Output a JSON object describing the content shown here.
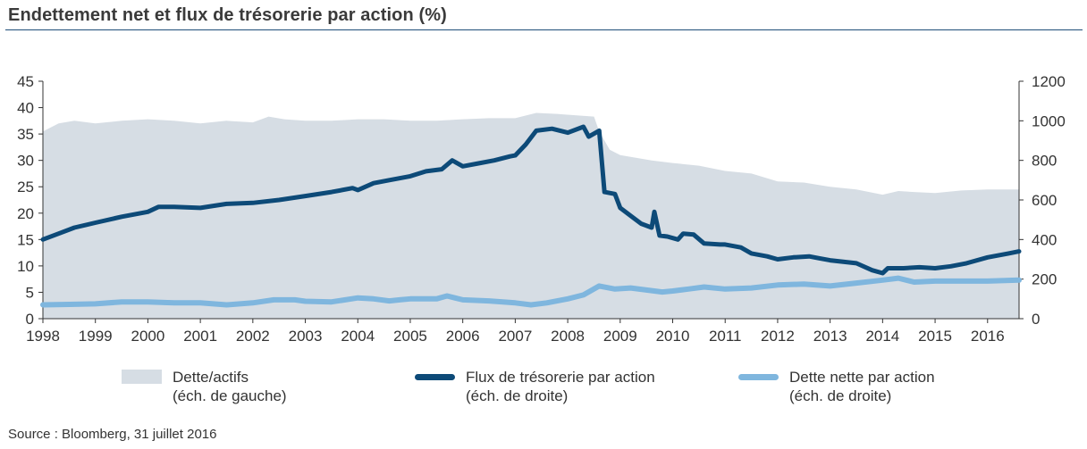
{
  "title": "Endettement net et flux de trésorerie par action (%)",
  "source": "Source : Bloomberg, 31 juillet 2016",
  "legend": {
    "area": {
      "line1": "Dette/actifs",
      "line2": "(éch. de gauche)"
    },
    "dark": {
      "line1": "Flux de trésorerie par action",
      "line2": "(éch. de droite)"
    },
    "light": {
      "line1": "Dette nette par action",
      "line2": "(éch. de droite)"
    }
  },
  "colors": {
    "area": "#d6dde4",
    "dark": "#0d4a78",
    "light": "#7fb6de",
    "axis": "#333333",
    "rule": "#1f4e79"
  },
  "chart_data": {
    "type": "line",
    "x_label_years": [
      "1998",
      "1999",
      "2000",
      "2001",
      "2002",
      "2003",
      "2004",
      "2005",
      "2006",
      "2007",
      "2008",
      "2009",
      "2010",
      "2011",
      "2012",
      "2013",
      "2014",
      "2015",
      "2016"
    ],
    "xlim": [
      1998.0,
      2016.6
    ],
    "y_left": {
      "ticks": [
        "0",
        "5",
        "10",
        "15",
        "20",
        "25",
        "30",
        "35",
        "40",
        "45"
      ],
      "range": [
        0,
        45
      ]
    },
    "y_right": {
      "ticks": [
        "0",
        "200",
        "400",
        "600",
        "800",
        "1000",
        "1200"
      ],
      "range": [
        0,
        1200
      ]
    },
    "series": [
      {
        "name": "Dette/actifs (éch. de gauche)",
        "type": "area",
        "axis": "left",
        "points": [
          [
            1998.0,
            35.5
          ],
          [
            1998.3,
            37
          ],
          [
            1998.6,
            37.5
          ],
          [
            1999.0,
            37
          ],
          [
            1999.5,
            37.5
          ],
          [
            2000.0,
            37.8
          ],
          [
            2000.5,
            37.5
          ],
          [
            2001.0,
            37
          ],
          [
            2001.5,
            37.5
          ],
          [
            2002.0,
            37.2
          ],
          [
            2002.3,
            38.3
          ],
          [
            2002.6,
            37.8
          ],
          [
            2003.0,
            37.5
          ],
          [
            2003.5,
            37.5
          ],
          [
            2004.0,
            37.8
          ],
          [
            2004.5,
            37.8
          ],
          [
            2005.0,
            37.5
          ],
          [
            2005.5,
            37.5
          ],
          [
            2006.0,
            37.8
          ],
          [
            2006.5,
            38
          ],
          [
            2007.0,
            38
          ],
          [
            2007.4,
            39
          ],
          [
            2007.8,
            38.8
          ],
          [
            2008.2,
            38.5
          ],
          [
            2008.5,
            38.3
          ],
          [
            2008.6,
            35.5
          ],
          [
            2008.8,
            32
          ],
          [
            2009.0,
            31
          ],
          [
            2009.3,
            30.5
          ],
          [
            2009.6,
            30
          ],
          [
            2010.0,
            29.5
          ],
          [
            2010.5,
            29
          ],
          [
            2011.0,
            28
          ],
          [
            2011.5,
            27.5
          ],
          [
            2012.0,
            26
          ],
          [
            2012.5,
            25.8
          ],
          [
            2013.0,
            25
          ],
          [
            2013.5,
            24.5
          ],
          [
            2014.0,
            23.5
          ],
          [
            2014.3,
            24.2
          ],
          [
            2014.6,
            24
          ],
          [
            2015.0,
            23.8
          ],
          [
            2015.5,
            24.3
          ],
          [
            2016.0,
            24.5
          ],
          [
            2016.6,
            24.5
          ]
        ]
      },
      {
        "name": "Flux de trésorerie par action (éch. de droite)",
        "type": "line",
        "axis": "right",
        "points": [
          [
            1998.0,
            400
          ],
          [
            1998.3,
            430
          ],
          [
            1998.6,
            460
          ],
          [
            1999.0,
            485
          ],
          [
            1999.5,
            515
          ],
          [
            2000.0,
            540
          ],
          [
            2000.2,
            565
          ],
          [
            2000.5,
            565
          ],
          [
            2001.0,
            560
          ],
          [
            2001.5,
            580
          ],
          [
            2002.0,
            585
          ],
          [
            2002.5,
            600
          ],
          [
            2003.0,
            620
          ],
          [
            2003.5,
            640
          ],
          [
            2003.9,
            660
          ],
          [
            2004.0,
            650
          ],
          [
            2004.3,
            685
          ],
          [
            2004.6,
            700
          ],
          [
            2005.0,
            720
          ],
          [
            2005.3,
            745
          ],
          [
            2005.6,
            755
          ],
          [
            2005.8,
            800
          ],
          [
            2006.0,
            770
          ],
          [
            2006.3,
            785
          ],
          [
            2006.6,
            800
          ],
          [
            2006.9,
            820
          ],
          [
            2007.0,
            825
          ],
          [
            2007.2,
            880
          ],
          [
            2007.4,
            950
          ],
          [
            2007.7,
            960
          ],
          [
            2008.0,
            940
          ],
          [
            2008.3,
            970
          ],
          [
            2008.4,
            920
          ],
          [
            2008.6,
            950
          ],
          [
            2008.7,
            640
          ],
          [
            2008.9,
            630
          ],
          [
            2009.0,
            560
          ],
          [
            2009.2,
            520
          ],
          [
            2009.4,
            480
          ],
          [
            2009.6,
            460
          ],
          [
            2009.65,
            540
          ],
          [
            2009.75,
            420
          ],
          [
            2009.9,
            415
          ],
          [
            2010.1,
            400
          ],
          [
            2010.2,
            430
          ],
          [
            2010.4,
            425
          ],
          [
            2010.6,
            380
          ],
          [
            2010.9,
            375
          ],
          [
            2011.0,
            375
          ],
          [
            2011.3,
            360
          ],
          [
            2011.5,
            330
          ],
          [
            2011.8,
            315
          ],
          [
            2012.0,
            300
          ],
          [
            2012.3,
            310
          ],
          [
            2012.6,
            315
          ],
          [
            2012.8,
            305
          ],
          [
            2013.0,
            295
          ],
          [
            2013.5,
            280
          ],
          [
            2013.8,
            245
          ],
          [
            2014.0,
            230
          ],
          [
            2014.1,
            255
          ],
          [
            2014.4,
            255
          ],
          [
            2014.7,
            260
          ],
          [
            2015.0,
            255
          ],
          [
            2015.3,
            265
          ],
          [
            2015.6,
            280
          ],
          [
            2016.0,
            310
          ],
          [
            2016.4,
            330
          ],
          [
            2016.6,
            340
          ]
        ]
      },
      {
        "name": "Dette nette par action (éch. de droite)",
        "type": "line",
        "axis": "right",
        "points": [
          [
            1998.0,
            70
          ],
          [
            1998.5,
            72
          ],
          [
            1999.0,
            75
          ],
          [
            1999.5,
            85
          ],
          [
            2000.0,
            85
          ],
          [
            2000.5,
            80
          ],
          [
            2001.0,
            80
          ],
          [
            2001.5,
            70
          ],
          [
            2002.0,
            80
          ],
          [
            2002.4,
            95
          ],
          [
            2002.8,
            95
          ],
          [
            2003.0,
            88
          ],
          [
            2003.5,
            85
          ],
          [
            2004.0,
            105
          ],
          [
            2004.3,
            100
          ],
          [
            2004.6,
            90
          ],
          [
            2004.8,
            95
          ],
          [
            2005.0,
            100
          ],
          [
            2005.5,
            100
          ],
          [
            2005.7,
            115
          ],
          [
            2006.0,
            95
          ],
          [
            2006.5,
            90
          ],
          [
            2007.0,
            80
          ],
          [
            2007.3,
            70
          ],
          [
            2007.6,
            80
          ],
          [
            2008.0,
            100
          ],
          [
            2008.3,
            120
          ],
          [
            2008.6,
            165
          ],
          [
            2008.9,
            150
          ],
          [
            2009.2,
            155
          ],
          [
            2009.5,
            145
          ],
          [
            2009.8,
            135
          ],
          [
            2010.0,
            140
          ],
          [
            2010.3,
            150
          ],
          [
            2010.6,
            160
          ],
          [
            2011.0,
            150
          ],
          [
            2011.5,
            155
          ],
          [
            2012.0,
            170
          ],
          [
            2012.5,
            175
          ],
          [
            2013.0,
            165
          ],
          [
            2013.5,
            180
          ],
          [
            2014.0,
            195
          ],
          [
            2014.3,
            205
          ],
          [
            2014.6,
            185
          ],
          [
            2015.0,
            190
          ],
          [
            2015.5,
            190
          ],
          [
            2016.0,
            190
          ],
          [
            2016.6,
            195
          ]
        ]
      }
    ]
  }
}
